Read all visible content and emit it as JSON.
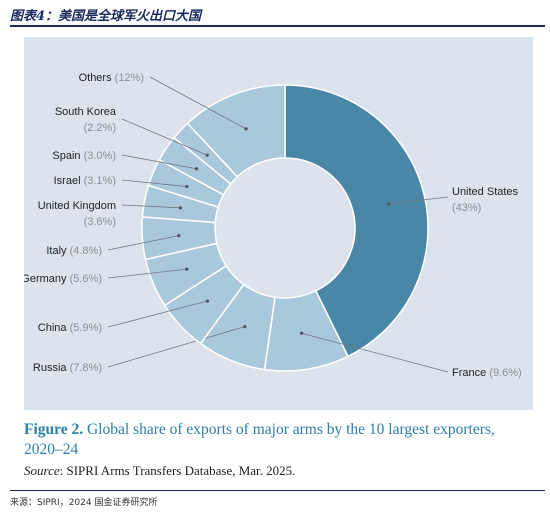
{
  "header": {
    "title": "图表4：美国是全球军火出口大国"
  },
  "figure": {
    "caption_label": "Figure 2.",
    "caption_text": "Global share of exports of major arms by the 10 largest exporters, 2020–24",
    "source_label": "Source",
    "source_text": ": SIPRI Arms Transfers Database, Mar. 2025."
  },
  "footer": {
    "source": "来源：SIPRI，2024 国金证券研究所"
  },
  "colors": {
    "highlight": "#4a87a6",
    "segment": "#a9c8d9",
    "panel": "#dbe4ec",
    "caption": "#2e7ea6",
    "leader": "#6e7880"
  },
  "chart_data": {
    "type": "pie",
    "donut": true,
    "title": "",
    "slices": [
      {
        "label": "United States",
        "value": 43,
        "value_text": "(43%)",
        "highlight": true
      },
      {
        "label": "France",
        "value": 9.6,
        "value_text": "(9.6%)"
      },
      {
        "label": "Russia",
        "value": 7.8,
        "value_text": "(7.8%)"
      },
      {
        "label": "China",
        "value": 5.9,
        "value_text": "(5.9%)"
      },
      {
        "label": "Germany",
        "value": 5.6,
        "value_text": "(5.6%)"
      },
      {
        "label": "Italy",
        "value": 4.8,
        "value_text": "(4.8%)"
      },
      {
        "label": "United Kingdom",
        "value": 3.6,
        "value_text": "(3.6%)"
      },
      {
        "label": "Israel",
        "value": 3.1,
        "value_text": "(3.1%)"
      },
      {
        "label": "Spain",
        "value": 3.0,
        "value_text": "(3.0%)"
      },
      {
        "label": "South Korea",
        "value": 2.2,
        "value_text": "(2.2%)"
      },
      {
        "label": "Others",
        "value": 12,
        "value_text": "(12%)"
      }
    ]
  }
}
